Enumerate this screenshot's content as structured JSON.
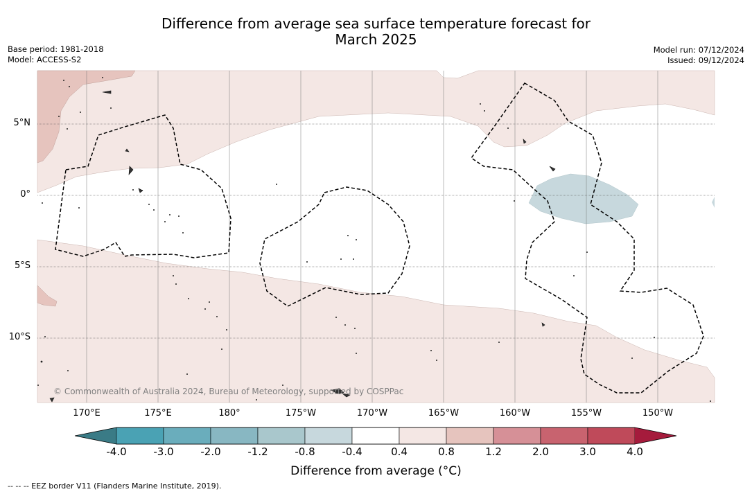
{
  "title": {
    "line1": "Difference from average sea surface temperature forecast for",
    "line2": "March 2025"
  },
  "meta_left": {
    "base_period": "Base period: 1981-2018",
    "model": "Model: ACCESS-S2"
  },
  "meta_right": {
    "model_run": "Model run: 07/12/2024",
    "issued": "Issued: 09/12/2024"
  },
  "map": {
    "longitude_labels": [
      "170°E",
      "175°E",
      "180°",
      "175°W",
      "170°W",
      "165°W",
      "160°W",
      "155°W",
      "150°W"
    ],
    "latitude_labels": [
      "5°N",
      "0°",
      "5°S",
      "10°S"
    ],
    "copyright": "© Commonwealth of Australia 2024, Bureau of Meteorology, supported by COSPPac",
    "colors": {
      "pale_warm": "#f4e7e4",
      "warm": "#e6c4be",
      "pale_cool": "#c7d8dd",
      "land_outline": "#222222"
    }
  },
  "colorbar": {
    "tick_labels": [
      "-4.0",
      "-3.0",
      "-2.0",
      "-1.2",
      "-0.8",
      "-0.4",
      "0.4",
      "0.8",
      "1.2",
      "2.0",
      "3.0",
      "4.0"
    ],
    "colors": [
      "#3a7b86",
      "#4aa2b4",
      "#6aadbc",
      "#88b7c2",
      "#a9c7cc",
      "#c7d8dd",
      "#ffffff",
      "#f4e7e4",
      "#e6c4be",
      "#d69097",
      "#c8636f",
      "#bf4a5a",
      "#a51b3c"
    ],
    "label": "Difference from average (°C)"
  },
  "footnote": "--  --  -- EEZ border V11 (Flanders Marine Institute, 2019)."
}
